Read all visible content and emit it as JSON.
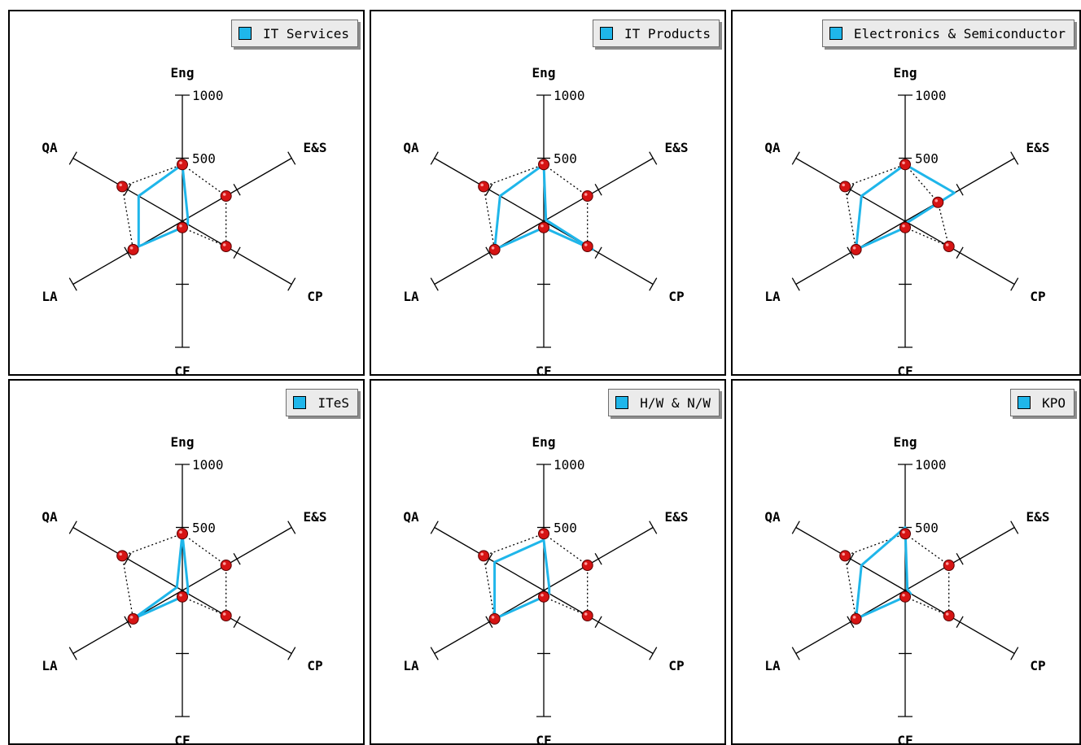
{
  "chart_data": [
    {
      "type": "radar",
      "legend": "IT Services",
      "axes": [
        "Eng",
        "E&S",
        "CP",
        "CF",
        "LA",
        "QA"
      ],
      "ticks": [
        500,
        1000
      ],
      "range": [
        0,
        1000
      ],
      "reference_series": {
        "values": [
          450,
          400,
          400,
          50,
          450,
          550
        ]
      },
      "series": [
        {
          "name": "IT Services",
          "values": [
            450,
            50,
            50,
            50,
            400,
            400
          ]
        }
      ]
    },
    {
      "type": "radar",
      "legend": "IT Products",
      "axes": [
        "Eng",
        "E&S",
        "CP",
        "CF",
        "LA",
        "QA"
      ],
      "ticks": [
        500,
        1000
      ],
      "range": [
        0,
        1000
      ],
      "reference_series": {
        "values": [
          450,
          400,
          400,
          50,
          450,
          550
        ]
      },
      "series": [
        {
          "name": "IT Products",
          "values": [
            450,
            20,
            450,
            50,
            450,
            400
          ]
        }
      ]
    },
    {
      "type": "radar",
      "legend": "Electronics & Semiconductor",
      "axes": [
        "Eng",
        "E&S",
        "CP",
        "CF",
        "LA",
        "QA"
      ],
      "ticks": [
        500,
        1000
      ],
      "range": [
        0,
        1000
      ],
      "reference_series": {
        "values": [
          450,
          300,
          400,
          50,
          450,
          550
        ]
      },
      "series": [
        {
          "name": "Electronics & Semiconductor",
          "values": [
            450,
            450,
            20,
            50,
            450,
            400
          ]
        }
      ]
    },
    {
      "type": "radar",
      "legend": "ITeS",
      "axes": [
        "Eng",
        "E&S",
        "CP",
        "CF",
        "LA",
        "QA"
      ],
      "ticks": [
        500,
        1000
      ],
      "range": [
        0,
        1000
      ],
      "reference_series": {
        "values": [
          450,
          400,
          400,
          50,
          450,
          550
        ]
      },
      "series": [
        {
          "name": "ITeS",
          "values": [
            450,
            50,
            50,
            50,
            450,
            50
          ]
        }
      ]
    },
    {
      "type": "radar",
      "legend": "H/W & N/W",
      "axes": [
        "Eng",
        "E&S",
        "CP",
        "CF",
        "LA",
        "QA"
      ],
      "ticks": [
        500,
        1000
      ],
      "range": [
        0,
        1000
      ],
      "reference_series": {
        "values": [
          450,
          400,
          400,
          50,
          450,
          550
        ]
      },
      "series": [
        {
          "name": "H/W & N/W",
          "values": [
            400,
            50,
            50,
            50,
            450,
            450
          ]
        }
      ]
    },
    {
      "type": "radar",
      "legend": "KPO",
      "axes": [
        "Eng",
        "E&S",
        "CP",
        "CF",
        "LA",
        "QA"
      ],
      "ticks": [
        500,
        1000
      ],
      "range": [
        0,
        1000
      ],
      "reference_series": {
        "values": [
          450,
          400,
          400,
          50,
          450,
          550
        ]
      },
      "series": [
        {
          "name": "KPO",
          "values": [
            500,
            20,
            50,
            50,
            450,
            400
          ]
        }
      ]
    }
  ],
  "colors": {
    "series": "#1fb6ea",
    "reference_marker": "#d61414",
    "axis": "#000000",
    "legend_bg": "#ebebeb"
  }
}
